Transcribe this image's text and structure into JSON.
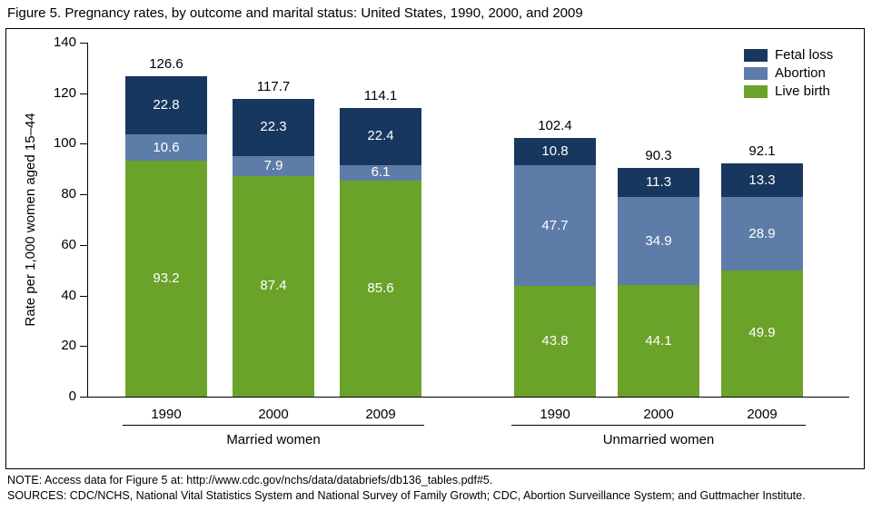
{
  "title": "Figure 5. Pregnancy rates, by outcome and marital status: United States, 1990, 2000, and 2009",
  "notes": {
    "note": "NOTE: Access data for Figure 5 at: http://www.cdc.gov/nchs/data/databriefs/db136_tables.pdf#5.",
    "sources": "SOURCES: CDC/NCHS, National Vital Statistics System and National Survey of Family Growth; CDC, Abortion Surveillance System; and Guttmacher Institute."
  },
  "chart_data": {
    "type": "bar",
    "stacked": true,
    "title": "Pregnancy rates, by outcome and marital status: United States, 1990, 2000, and 2009",
    "xlabel": "",
    "ylabel": "Rate per 1,000 women aged 15–44",
    "ylim": [
      0,
      140
    ],
    "yticks": [
      0,
      20,
      40,
      60,
      80,
      100,
      120,
      140
    ],
    "grid": false,
    "legend_position": "top-right",
    "legend": [
      {
        "label": "Fetal loss",
        "color": "#17375e"
      },
      {
        "label": "Abortion",
        "color": "#5e7ca8"
      },
      {
        "label": "Live birth",
        "color": "#6ba229"
      }
    ],
    "groups": [
      {
        "label": "Married women",
        "categories": [
          "1990",
          "2000",
          "2009"
        ],
        "totals": [
          126.6,
          117.7,
          114.1
        ],
        "series": [
          {
            "name": "Live birth",
            "color": "#6ba229",
            "values": [
              93.2,
              87.4,
              85.6
            ]
          },
          {
            "name": "Abortion",
            "color": "#5e7ca8",
            "values": [
              10.6,
              7.9,
              6.1
            ]
          },
          {
            "name": "Fetal loss",
            "color": "#17375e",
            "values": [
              22.8,
              22.3,
              22.4
            ]
          }
        ]
      },
      {
        "label": "Unmarried women",
        "categories": [
          "1990",
          "2000",
          "2009"
        ],
        "totals": [
          102.4,
          90.3,
          92.1
        ],
        "series": [
          {
            "name": "Live birth",
            "color": "#6ba229",
            "values": [
              43.8,
              44.1,
              49.9
            ]
          },
          {
            "name": "Abortion",
            "color": "#5e7ca8",
            "values": [
              47.7,
              34.9,
              28.9
            ]
          },
          {
            "name": "Fetal loss",
            "color": "#17375e",
            "values": [
              10.8,
              11.3,
              13.3
            ]
          }
        ]
      }
    ]
  }
}
